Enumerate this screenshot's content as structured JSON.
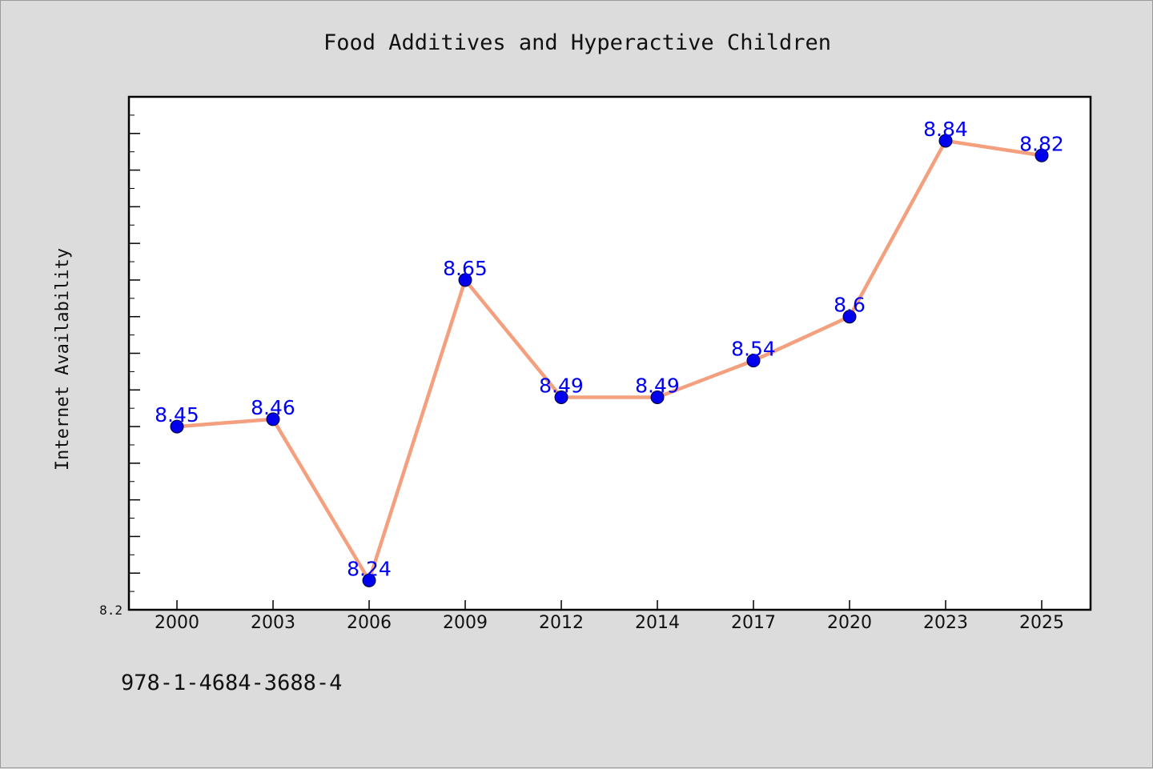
{
  "chart_data": {
    "type": "line",
    "title": "Food Additives and Hyperactive Children",
    "ylabel": "Internet Availability",
    "xlabel": "",
    "categories": [
      "2000",
      "2003",
      "2006",
      "2009",
      "2012",
      "2014",
      "2017",
      "2020",
      "2023",
      "2025"
    ],
    "series": [
      {
        "values": [
          8.45,
          8.46,
          8.24,
          8.65,
          8.49,
          8.49,
          8.54,
          8.6,
          8.84,
          8.82
        ],
        "labels": [
          "8.45",
          "8.46",
          "8.24",
          "8.65",
          "8.49",
          "8.49",
          "8.54",
          "8.6",
          "8.84",
          "8.82"
        ]
      }
    ],
    "ylim": [
      8.2,
      8.9
    ],
    "yticks_labeled": [
      "8.2"
    ],
    "grid": false,
    "colors": {
      "line": "#f4a07e",
      "marker": "#0000ee",
      "data_label": "#0000ee",
      "plot_bg": "#ffffff",
      "page_bg": "#dcdcdc"
    }
  },
  "footnote": "978-1-4684-3688-4"
}
